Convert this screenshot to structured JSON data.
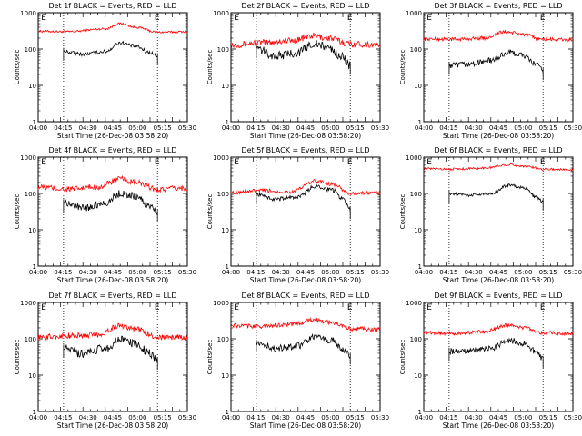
{
  "figure": {
    "xlabel": "Start Time (26-Dec-08 03:58:20)",
    "ylabel": "Counts/sec"
  },
  "chart_data": [
    {
      "type": "line",
      "title": "Det 1f BLACK = Events, RED = LLD",
      "xlabel": "Start Time (26-Dec-08 03:58:20)",
      "ylabel": "Counts/sec",
      "x_ticks": [
        "04:00",
        "04:15",
        "04:30",
        "04:45",
        "05:00",
        "05:15",
        "05:30"
      ],
      "y_ticks": [
        "1",
        "10",
        "100",
        "1000"
      ],
      "ylim": [
        1,
        1000
      ],
      "yscale": "log",
      "x_range_min": [
        0,
        100
      ],
      "markers": [
        {
          "label": "E",
          "x_min": 2
        },
        {
          "label": "E",
          "x_min": 78
        }
      ],
      "dotted_lines_min": [
        17,
        80
      ],
      "series": [
        {
          "color": "#ff0000",
          "start_min": 0,
          "end_min": 100,
          "knots": [
            [
              0,
              310
            ],
            [
              20,
              300
            ],
            [
              45,
              360
            ],
            [
              55,
              500
            ],
            [
              65,
              400
            ],
            [
              80,
              290
            ],
            [
              100,
              300
            ]
          ],
          "noise": 0.03
        },
        {
          "color": "#000000",
          "start_min": 17,
          "end_min": 80,
          "knots": [
            [
              17,
              85
            ],
            [
              30,
              72
            ],
            [
              45,
              85
            ],
            [
              55,
              150
            ],
            [
              65,
              120
            ],
            [
              75,
              80
            ],
            [
              80,
              65
            ]
          ],
          "noise": 0.05
        }
      ]
    },
    {
      "type": "line",
      "title": "Det 2f BLACK = Events, RED = LLD",
      "xlabel": "Start Time (26-Dec-08 03:58:20)",
      "ylabel": "Counts/sec",
      "x_ticks": [
        "04:00",
        "04:15",
        "04:30",
        "04:45",
        "05:00",
        "05:15",
        "05:30"
      ],
      "y_ticks": [
        "1",
        "10",
        "100",
        "1000"
      ],
      "ylim": [
        1,
        1000
      ],
      "yscale": "log",
      "x_range_min": [
        0,
        100
      ],
      "markers": [
        {
          "label": "E",
          "x_min": 2
        },
        {
          "label": "E",
          "x_min": 78
        }
      ],
      "dotted_lines_min": [
        17,
        80
      ],
      "series": [
        {
          "color": "#ff0000",
          "start_min": 0,
          "end_min": 100,
          "knots": [
            [
              0,
              130
            ],
            [
              20,
              150
            ],
            [
              40,
              170
            ],
            [
              55,
              230
            ],
            [
              65,
              200
            ],
            [
              80,
              140
            ],
            [
              100,
              130
            ]
          ],
          "noise": 0.09
        },
        {
          "color": "#000000",
          "start_min": 17,
          "end_min": 80,
          "knots": [
            [
              17,
              100
            ],
            [
              30,
              65
            ],
            [
              45,
              80
            ],
            [
              55,
              140
            ],
            [
              65,
              110
            ],
            [
              75,
              60
            ],
            [
              80,
              35
            ]
          ],
          "noise": 0.12
        }
      ]
    },
    {
      "type": "line",
      "title": "Det 3f BLACK = Events, RED = LLD",
      "xlabel": "Start Time (26-Dec-08 03:58:20)",
      "ylabel": "Counts/sec",
      "x_ticks": [
        "04:00",
        "04:15",
        "04:30",
        "04:45",
        "05:00",
        "05:15",
        "05:30"
      ],
      "y_ticks": [
        "1",
        "10",
        "100",
        "1000"
      ],
      "ylim": [
        1,
        1000
      ],
      "yscale": "log",
      "x_range_min": [
        0,
        100
      ],
      "markers": [
        {
          "label": "E",
          "x_min": 2
        },
        {
          "label": "E",
          "x_min": 78
        }
      ],
      "dotted_lines_min": [
        17,
        80
      ],
      "series": [
        {
          "color": "#ff0000",
          "start_min": 0,
          "end_min": 100,
          "knots": [
            [
              0,
              190
            ],
            [
              20,
              185
            ],
            [
              40,
              200
            ],
            [
              55,
              300
            ],
            [
              65,
              260
            ],
            [
              80,
              185
            ],
            [
              100,
              180
            ]
          ],
          "noise": 0.05
        },
        {
          "color": "#000000",
          "start_min": 17,
          "end_min": 80,
          "knots": [
            [
              17,
              35
            ],
            [
              30,
              38
            ],
            [
              45,
              48
            ],
            [
              57,
              80
            ],
            [
              65,
              70
            ],
            [
              75,
              40
            ],
            [
              80,
              25
            ]
          ],
          "noise": 0.08
        }
      ]
    },
    {
      "type": "line",
      "title": "Det 4f BLACK = Events, RED = LLD",
      "xlabel": "Start Time (26-Dec-08 03:58:20)",
      "ylabel": "Counts/sec",
      "x_ticks": [
        "04:00",
        "04:15",
        "04:30",
        "04:45",
        "05:00",
        "05:15",
        "05:30"
      ],
      "y_ticks": [
        "1",
        "10",
        "100",
        "1000"
      ],
      "ylim": [
        1,
        1000
      ],
      "yscale": "log",
      "x_range_min": [
        0,
        100
      ],
      "markers": [
        {
          "label": "E",
          "x_min": 2
        },
        {
          "label": "E",
          "x_min": 78
        }
      ],
      "dotted_lines_min": [
        17,
        80
      ],
      "series": [
        {
          "color": "#ff0000",
          "start_min": 0,
          "end_min": 100,
          "knots": [
            [
              0,
              150
            ],
            [
              20,
              130
            ],
            [
              40,
              150
            ],
            [
              55,
              250
            ],
            [
              65,
              200
            ],
            [
              80,
              130
            ],
            [
              100,
              140
            ]
          ],
          "noise": 0.08
        },
        {
          "color": "#000000",
          "start_min": 17,
          "end_min": 80,
          "knots": [
            [
              17,
              55
            ],
            [
              30,
              40
            ],
            [
              45,
              55
            ],
            [
              55,
              100
            ],
            [
              65,
              85
            ],
            [
              75,
              45
            ],
            [
              80,
              30
            ]
          ],
          "noise": 0.1
        }
      ]
    },
    {
      "type": "line",
      "title": "Det 5f BLACK = Events, RED = LLD",
      "xlabel": "Start Time (26-Dec-08 03:58:20)",
      "ylabel": "Counts/sec",
      "x_ticks": [
        "04:00",
        "04:15",
        "04:30",
        "04:45",
        "05:00",
        "05:15",
        "05:30"
      ],
      "y_ticks": [
        "1",
        "10",
        "100",
        "1000"
      ],
      "ylim": [
        1,
        1000
      ],
      "yscale": "log",
      "x_range_min": [
        0,
        100
      ],
      "markers": [
        {
          "label": "E",
          "x_min": 2
        },
        {
          "label": "E",
          "x_min": 78
        }
      ],
      "dotted_lines_min": [
        17,
        80
      ],
      "series": [
        {
          "color": "#ff0000",
          "start_min": 0,
          "end_min": 100,
          "knots": [
            [
              0,
              105
            ],
            [
              20,
              120
            ],
            [
              40,
              110
            ],
            [
              57,
              220
            ],
            [
              68,
              180
            ],
            [
              80,
              100
            ],
            [
              100,
              105
            ]
          ],
          "noise": 0.05
        },
        {
          "color": "#000000",
          "start_min": 17,
          "end_min": 80,
          "knots": [
            [
              17,
              95
            ],
            [
              30,
              70
            ],
            [
              45,
              80
            ],
            [
              57,
              160
            ],
            [
              68,
              125
            ],
            [
              75,
              70
            ],
            [
              80,
              35
            ]
          ],
          "noise": 0.06
        }
      ]
    },
    {
      "type": "line",
      "title": "Det 6f BLACK = Events, RED = LLD",
      "xlabel": "Start Time (26-Dec-08 03:58:20)",
      "ylabel": "Counts/sec",
      "x_ticks": [
        "04:00",
        "04:15",
        "04:30",
        "04:45",
        "05:00",
        "05:15",
        "05:30"
      ],
      "y_ticks": [
        "1",
        "10",
        "100",
        "1000"
      ],
      "ylim": [
        1,
        1000
      ],
      "yscale": "log",
      "x_range_min": [
        0,
        100
      ],
      "markers": [
        {
          "label": "E",
          "x_min": 2
        },
        {
          "label": "E",
          "x_min": 78
        }
      ],
      "dotted_lines_min": [
        17,
        80
      ],
      "series": [
        {
          "color": "#ff0000",
          "start_min": 0,
          "end_min": 100,
          "knots": [
            [
              0,
              480
            ],
            [
              20,
              470
            ],
            [
              40,
              500
            ],
            [
              57,
              620
            ],
            [
              68,
              560
            ],
            [
              80,
              470
            ],
            [
              100,
              450
            ]
          ],
          "noise": 0.03
        },
        {
          "color": "#000000",
          "start_min": 17,
          "end_min": 80,
          "knots": [
            [
              17,
              100
            ],
            [
              30,
              90
            ],
            [
              45,
              100
            ],
            [
              57,
              170
            ],
            [
              68,
              140
            ],
            [
              75,
              80
            ],
            [
              80,
              60
            ]
          ],
          "noise": 0.04
        }
      ]
    },
    {
      "type": "line",
      "title": "Det 7f BLACK = Events, RED = LLD",
      "xlabel": "Start Time (26-Dec-08 03:58:20)",
      "ylabel": "Counts/sec",
      "x_ticks": [
        "04:00",
        "04:15",
        "04:30",
        "04:45",
        "05:00",
        "05:15",
        "05:30"
      ],
      "y_ticks": [
        "1",
        "10",
        "100",
        "1000"
      ],
      "ylim": [
        1,
        1000
      ],
      "yscale": "log",
      "x_range_min": [
        0,
        100
      ],
      "markers": [
        {
          "label": "E",
          "x_min": 2
        },
        {
          "label": "E",
          "x_min": 78
        }
      ],
      "dotted_lines_min": [
        17,
        80
      ],
      "series": [
        {
          "color": "#ff0000",
          "start_min": 0,
          "end_min": 100,
          "knots": [
            [
              0,
              110
            ],
            [
              20,
              120
            ],
            [
              40,
              130
            ],
            [
              55,
              230
            ],
            [
              65,
              190
            ],
            [
              80,
              110
            ],
            [
              100,
              110
            ]
          ],
          "noise": 0.08
        },
        {
          "color": "#000000",
          "start_min": 17,
          "end_min": 80,
          "knots": [
            [
              17,
              55
            ],
            [
              30,
              38
            ],
            [
              45,
              55
            ],
            [
              55,
              95
            ],
            [
              65,
              75
            ],
            [
              75,
              40
            ],
            [
              80,
              25
            ]
          ],
          "noise": 0.12
        }
      ]
    },
    {
      "type": "line",
      "title": "Det 8f BLACK = Events, RED = LLD",
      "xlabel": "Start Time (26-Dec-08 03:58:20)",
      "ylabel": "Counts/sec",
      "x_ticks": [
        "04:00",
        "04:15",
        "04:30",
        "04:45",
        "05:00",
        "05:15",
        "05:30"
      ],
      "y_ticks": [
        "1",
        "10",
        "100",
        "1000"
      ],
      "ylim": [
        1,
        1000
      ],
      "yscale": "log",
      "x_range_min": [
        0,
        100
      ],
      "markers": [
        {
          "label": "E",
          "x_min": 2
        },
        {
          "label": "E",
          "x_min": 78
        }
      ],
      "dotted_lines_min": [
        17,
        80
      ],
      "series": [
        {
          "color": "#ff0000",
          "start_min": 0,
          "end_min": 100,
          "knots": [
            [
              0,
              230
            ],
            [
              20,
              220
            ],
            [
              40,
              250
            ],
            [
              57,
              330
            ],
            [
              68,
              280
            ],
            [
              80,
              190
            ],
            [
              100,
              180
            ]
          ],
          "noise": 0.06
        },
        {
          "color": "#000000",
          "start_min": 17,
          "end_min": 80,
          "knots": [
            [
              17,
              75
            ],
            [
              30,
              55
            ],
            [
              45,
              65
            ],
            [
              57,
              110
            ],
            [
              68,
              90
            ],
            [
              75,
              50
            ],
            [
              80,
              35
            ]
          ],
          "noise": 0.1
        }
      ]
    },
    {
      "type": "line",
      "title": "Det 9f BLACK = Events, RED = LLD",
      "xlabel": "Start Time (26-Dec-08 03:58:20)",
      "ylabel": "Counts/sec",
      "x_ticks": [
        "04:00",
        "04:15",
        "04:30",
        "04:45",
        "05:00",
        "05:15",
        "05:30"
      ],
      "y_ticks": [
        "1",
        "10",
        "100",
        "1000"
      ],
      "ylim": [
        1,
        1000
      ],
      "yscale": "log",
      "x_range_min": [
        0,
        100
      ],
      "markers": [
        {
          "label": "E",
          "x_min": 2
        },
        {
          "label": "E",
          "x_min": 78
        }
      ],
      "dotted_lines_min": [
        17,
        80
      ],
      "series": [
        {
          "color": "#ff0000",
          "start_min": 0,
          "end_min": 100,
          "knots": [
            [
              0,
              150
            ],
            [
              20,
              140
            ],
            [
              40,
              155
            ],
            [
              57,
              240
            ],
            [
              68,
              200
            ],
            [
              80,
              145
            ],
            [
              100,
              140
            ]
          ],
          "noise": 0.05
        },
        {
          "color": "#000000",
          "start_min": 17,
          "end_min": 80,
          "knots": [
            [
              17,
              45
            ],
            [
              30,
              45
            ],
            [
              45,
              55
            ],
            [
              57,
              90
            ],
            [
              68,
              75
            ],
            [
              75,
              45
            ],
            [
              80,
              28
            ]
          ],
          "noise": 0.08
        }
      ]
    }
  ]
}
